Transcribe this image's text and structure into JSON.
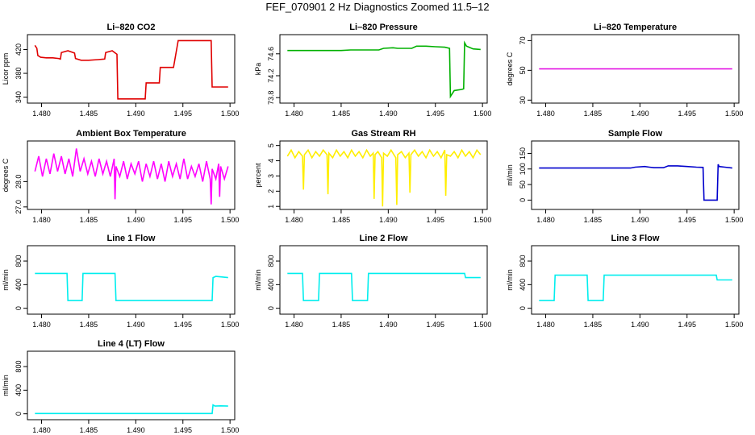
{
  "title": "FEF_070901  2 Hz Diagnostics Zoomed 11.5–12",
  "chart_data": [
    {
      "type": "line",
      "title": "Li–820 CO2",
      "ylabel": "Licor ppm",
      "xlim": [
        1.4785,
        1.5005
      ],
      "ylim": [
        330,
        445
      ],
      "xticks": [
        1.48,
        1.485,
        1.49,
        1.495,
        1.5
      ],
      "xtick_labels": [
        "1.480",
        "1.485",
        "1.490",
        "1.495",
        "1.500"
      ],
      "yticks": [
        340,
        380,
        420
      ],
      "ytick_labels": [
        "340",
        "380",
        "420"
      ],
      "color": "#e00000",
      "series": [
        {
          "x": [
            1.4793,
            1.4795,
            1.4796,
            1.4799,
            1.4805,
            1.4812,
            1.4818,
            1.482,
            1.4821,
            1.4828,
            1.4835,
            1.4836,
            1.4842,
            1.485,
            1.486,
            1.4867,
            1.4868,
            1.4875,
            1.488,
            1.4881,
            1.4895,
            1.4896,
            1.4905,
            1.491,
            1.4911,
            1.4925,
            1.4926,
            1.4935,
            1.494,
            1.4945,
            1.4955,
            1.4965,
            1.4975,
            1.498,
            1.4981,
            1.499,
            1.4998
          ],
          "y": [
            427,
            422,
            410,
            407,
            406,
            406,
            405,
            404,
            415,
            418,
            414,
            405,
            402,
            402,
            403,
            404,
            415,
            418,
            412,
            337,
            337,
            337,
            337,
            337,
            364,
            364,
            390,
            390,
            390,
            435,
            435,
            435,
            435,
            435,
            357,
            357,
            357
          ]
        }
      ]
    },
    {
      "type": "line",
      "title": "Li–820 Pressure",
      "ylabel": "kPa",
      "xlim": [
        1.4785,
        1.5005
      ],
      "ylim": [
        73.7,
        74.95
      ],
      "xticks": [
        1.48,
        1.485,
        1.49,
        1.495,
        1.5
      ],
      "xtick_labels": [
        "1.480",
        "1.485",
        "1.490",
        "1.495",
        "1.500"
      ],
      "yticks": [
        73.8,
        74.2,
        74.6
      ],
      "ytick_labels": [
        "73.8",
        "74.2",
        "74.6"
      ],
      "color": "#00b000",
      "series": [
        {
          "x": [
            1.4793,
            1.48,
            1.481,
            1.482,
            1.483,
            1.484,
            1.485,
            1.486,
            1.487,
            1.488,
            1.489,
            1.4895,
            1.4905,
            1.491,
            1.4915,
            1.4925,
            1.493,
            1.494,
            1.495,
            1.496,
            1.4965,
            1.4966,
            1.497,
            1.4978,
            1.498,
            1.4981,
            1.4983,
            1.499,
            1.4998
          ],
          "y": [
            74.66,
            74.66,
            74.66,
            74.66,
            74.66,
            74.66,
            74.66,
            74.67,
            74.67,
            74.67,
            74.67,
            74.7,
            74.71,
            74.7,
            74.7,
            74.7,
            74.74,
            74.74,
            74.73,
            74.72,
            74.7,
            73.82,
            73.93,
            73.95,
            73.96,
            74.8,
            74.74,
            74.69,
            74.68
          ]
        }
      ]
    },
    {
      "type": "line",
      "title": "Li–820 Temperature",
      "ylabel": "degrees C",
      "xlim": [
        1.4785,
        1.5005
      ],
      "ylim": [
        28,
        74
      ],
      "xticks": [
        1.48,
        1.485,
        1.49,
        1.495,
        1.5
      ],
      "xtick_labels": [
        "1.480",
        "1.485",
        "1.490",
        "1.495",
        "1.500"
      ],
      "yticks": [
        30,
        50,
        70
      ],
      "ytick_labels": [
        "30",
        "50",
        "70"
      ],
      "color": "#e000e0",
      "series": [
        {
          "x": [
            1.4793,
            1.4998
          ],
          "y": [
            51,
            51
          ]
        }
      ]
    },
    {
      "type": "line",
      "title": "Ambient Box Temperature",
      "ylabel": "degrees C",
      "xlim": [
        1.4785,
        1.5005
      ],
      "ylim": [
        26.9,
        29.6
      ],
      "xticks": [
        1.48,
        1.485,
        1.49,
        1.495,
        1.5
      ],
      "xtick_labels": [
        "1.480",
        "1.485",
        "1.490",
        "1.495",
        "1.500"
      ],
      "yticks": [
        27.0,
        28.0
      ],
      "ytick_labels": [
        "27.0",
        "28.0"
      ],
      "color": "#ff00ff",
      "series": [
        {
          "x": [
            1.4793,
            1.4797,
            1.4801,
            1.4805,
            1.4809,
            1.4813,
            1.4817,
            1.4821,
            1.4825,
            1.4829,
            1.4833,
            1.4837,
            1.4841,
            1.4845,
            1.4849,
            1.4853,
            1.4857,
            1.4861,
            1.4865,
            1.4869,
            1.4873,
            1.4877,
            1.4878,
            1.4879,
            1.4883,
            1.4887,
            1.4891,
            1.4895,
            1.4899,
            1.4903,
            1.4907,
            1.4911,
            1.4915,
            1.4919,
            1.4923,
            1.4927,
            1.4931,
            1.4935,
            1.4939,
            1.4943,
            1.4947,
            1.4951,
            1.4955,
            1.4959,
            1.4963,
            1.4967,
            1.4971,
            1.4975,
            1.4979,
            1.498,
            1.4981,
            1.4985,
            1.4988,
            1.4989,
            1.499,
            1.4994,
            1.4998
          ],
          "y": [
            28.4,
            29.0,
            28.2,
            28.9,
            28.3,
            29.1,
            28.4,
            29.0,
            28.3,
            28.9,
            28.2,
            29.3,
            28.4,
            28.9,
            28.3,
            28.8,
            28.2,
            28.9,
            28.3,
            28.8,
            28.2,
            28.9,
            27.3,
            28.6,
            28.2,
            28.8,
            28.1,
            28.7,
            28.3,
            28.8,
            28.0,
            28.7,
            28.2,
            28.8,
            28.1,
            28.7,
            28.0,
            28.8,
            28.2,
            28.7,
            28.1,
            28.9,
            28.1,
            28.6,
            28.2,
            28.7,
            28.0,
            28.8,
            28.1,
            27.1,
            28.5,
            28.1,
            28.7,
            27.4,
            28.6,
            28.1,
            28.6
          ]
        }
      ]
    },
    {
      "type": "line",
      "title": "Gas Stream RH",
      "ylabel": "percent",
      "xlim": [
        1.4785,
        1.5005
      ],
      "ylim": [
        0.8,
        5.3
      ],
      "xticks": [
        1.48,
        1.485,
        1.49,
        1.495,
        1.5
      ],
      "xtick_labels": [
        "1.480",
        "1.485",
        "1.490",
        "1.495",
        "1.500"
      ],
      "yticks": [
        1,
        2,
        3,
        4,
        5
      ],
      "ytick_labels": [
        "1",
        "2",
        "3",
        "4",
        "5"
      ],
      "color": "#ffee00",
      "series": [
        {
          "x": [
            1.4793,
            1.4797,
            1.4801,
            1.4805,
            1.4809,
            1.481,
            1.4811,
            1.4815,
            1.4819,
            1.4823,
            1.4827,
            1.4831,
            1.4835,
            1.4836,
            1.4837,
            1.4841,
            1.4845,
            1.4849,
            1.4853,
            1.4857,
            1.4861,
            1.4865,
            1.4869,
            1.4873,
            1.4877,
            1.4881,
            1.4884,
            1.4885,
            1.4886,
            1.4889,
            1.4893,
            1.4894,
            1.4895,
            1.4899,
            1.4903,
            1.4908,
            1.4909,
            1.491,
            1.4914,
            1.4918,
            1.4922,
            1.4923,
            1.4924,
            1.4928,
            1.4932,
            1.4936,
            1.494,
            1.4944,
            1.4948,
            1.4952,
            1.4956,
            1.496,
            1.4961,
            1.4962,
            1.4966,
            1.497,
            1.4974,
            1.4978,
            1.4982,
            1.4986,
            1.499,
            1.4994,
            1.4998
          ],
          "y": [
            4.3,
            4.7,
            4.2,
            4.6,
            4.3,
            2.1,
            4.4,
            4.7,
            4.2,
            4.6,
            4.3,
            4.7,
            4.4,
            1.8,
            4.5,
            4.2,
            4.7,
            4.3,
            4.6,
            4.2,
            4.7,
            4.3,
            4.6,
            4.2,
            4.7,
            4.3,
            4.5,
            1.5,
            4.4,
            4.6,
            4.2,
            1.0,
            4.5,
            4.3,
            4.7,
            4.2,
            1.1,
            4.4,
            4.6,
            4.2,
            4.5,
            1.9,
            4.4,
            4.7,
            4.3,
            4.6,
            4.2,
            4.7,
            4.3,
            4.6,
            4.2,
            4.7,
            1.7,
            4.4,
            4.3,
            4.6,
            4.2,
            4.7,
            4.3,
            4.6,
            4.2,
            4.7,
            4.4
          ]
        }
      ]
    },
    {
      "type": "line",
      "title": "Sample Flow",
      "ylabel": "ml/min",
      "xlim": [
        1.4785,
        1.5005
      ],
      "ylim": [
        -30,
        190
      ],
      "xticks": [
        1.48,
        1.485,
        1.49,
        1.495,
        1.5
      ],
      "xtick_labels": [
        "1.480",
        "1.485",
        "1.490",
        "1.495",
        "1.500"
      ],
      "yticks": [
        0,
        50,
        100,
        150
      ],
      "ytick_labels": [
        "0",
        "50",
        "100",
        "150"
      ],
      "color": "#0000cc",
      "series": [
        {
          "x": [
            1.4793,
            1.48,
            1.481,
            1.482,
            1.483,
            1.484,
            1.485,
            1.486,
            1.487,
            1.488,
            1.489,
            1.4895,
            1.4905,
            1.491,
            1.4915,
            1.4925,
            1.493,
            1.494,
            1.495,
            1.496,
            1.4967,
            1.4968,
            1.4978,
            1.4982,
            1.4983,
            1.4984,
            1.499,
            1.4998
          ],
          "y": [
            103,
            103,
            103,
            103,
            103,
            103,
            103,
            103,
            103,
            103,
            103,
            106,
            108,
            106,
            104,
            104,
            110,
            110,
            108,
            106,
            105,
            0,
            0,
            0,
            115,
            108,
            106,
            103
          ]
        }
      ]
    },
    {
      "type": "line",
      "title": "Line 1 Flow",
      "ylabel": "ml/min",
      "xlim": [
        1.4785,
        1.5005
      ],
      "ylim": [
        -100,
        1060
      ],
      "xticks": [
        1.48,
        1.485,
        1.49,
        1.495,
        1.5
      ],
      "xtick_labels": [
        "1.480",
        "1.485",
        "1.490",
        "1.495",
        "1.500"
      ],
      "yticks": [
        0,
        400,
        800
      ],
      "ytick_labels": [
        "0",
        "400",
        "800"
      ],
      "color": "#00eeee",
      "series": [
        {
          "x": [
            1.4793,
            1.4827,
            1.4828,
            1.4843,
            1.4844,
            1.4878,
            1.4879,
            1.4981,
            1.4982,
            1.4985,
            1.4998
          ],
          "y": [
            590,
            590,
            130,
            130,
            590,
            590,
            130,
            130,
            520,
            540,
            520
          ]
        }
      ]
    },
    {
      "type": "line",
      "title": "Line 2 Flow",
      "ylabel": "ml/min",
      "xlim": [
        1.4785,
        1.5005
      ],
      "ylim": [
        -100,
        1060
      ],
      "xticks": [
        1.48,
        1.485,
        1.49,
        1.495,
        1.5
      ],
      "xtick_labels": [
        "1.480",
        "1.485",
        "1.490",
        "1.495",
        "1.500"
      ],
      "yticks": [
        0,
        400,
        800
      ],
      "ytick_labels": [
        "0",
        "400",
        "800"
      ],
      "color": "#00eeee",
      "series": [
        {
          "x": [
            1.4793,
            1.4809,
            1.481,
            1.4826,
            1.4827,
            1.4861,
            1.4862,
            1.4878,
            1.4879,
            1.4981,
            1.4982,
            1.4998
          ],
          "y": [
            590,
            590,
            130,
            130,
            590,
            590,
            130,
            130,
            590,
            590,
            520,
            520
          ]
        }
      ]
    },
    {
      "type": "line",
      "title": "Line 3 Flow",
      "ylabel": "ml/min",
      "xlim": [
        1.4785,
        1.5005
      ],
      "ylim": [
        -100,
        1060
      ],
      "xticks": [
        1.48,
        1.485,
        1.49,
        1.495,
        1.5
      ],
      "xtick_labels": [
        "1.480",
        "1.485",
        "1.490",
        "1.495",
        "1.500"
      ],
      "yticks": [
        0,
        400,
        800
      ],
      "ytick_labels": [
        "0",
        "400",
        "800"
      ],
      "color": "#00eeee",
      "series": [
        {
          "x": [
            1.4793,
            1.4809,
            1.481,
            1.4844,
            1.4845,
            1.4861,
            1.4862,
            1.4981,
            1.4982,
            1.4998
          ],
          "y": [
            130,
            130,
            560,
            560,
            130,
            130,
            560,
            560,
            480,
            480
          ]
        }
      ]
    },
    {
      "type": "line",
      "title": "Line 4 (LT) Flow",
      "ylabel": "ml/min",
      "xlim": [
        1.4785,
        1.5005
      ],
      "ylim": [
        -100,
        1060
      ],
      "xticks": [
        1.48,
        1.485,
        1.49,
        1.495,
        1.5
      ],
      "xtick_labels": [
        "1.480",
        "1.485",
        "1.490",
        "1.495",
        "1.500"
      ],
      "yticks": [
        0,
        400,
        800
      ],
      "ytick_labels": [
        "0",
        "400",
        "800"
      ],
      "color": "#00eeee",
      "series": [
        {
          "x": [
            1.4793,
            1.4981,
            1.4982,
            1.4984,
            1.499,
            1.4998
          ],
          "y": [
            5,
            5,
            150,
            130,
            135,
            130
          ]
        }
      ]
    }
  ]
}
